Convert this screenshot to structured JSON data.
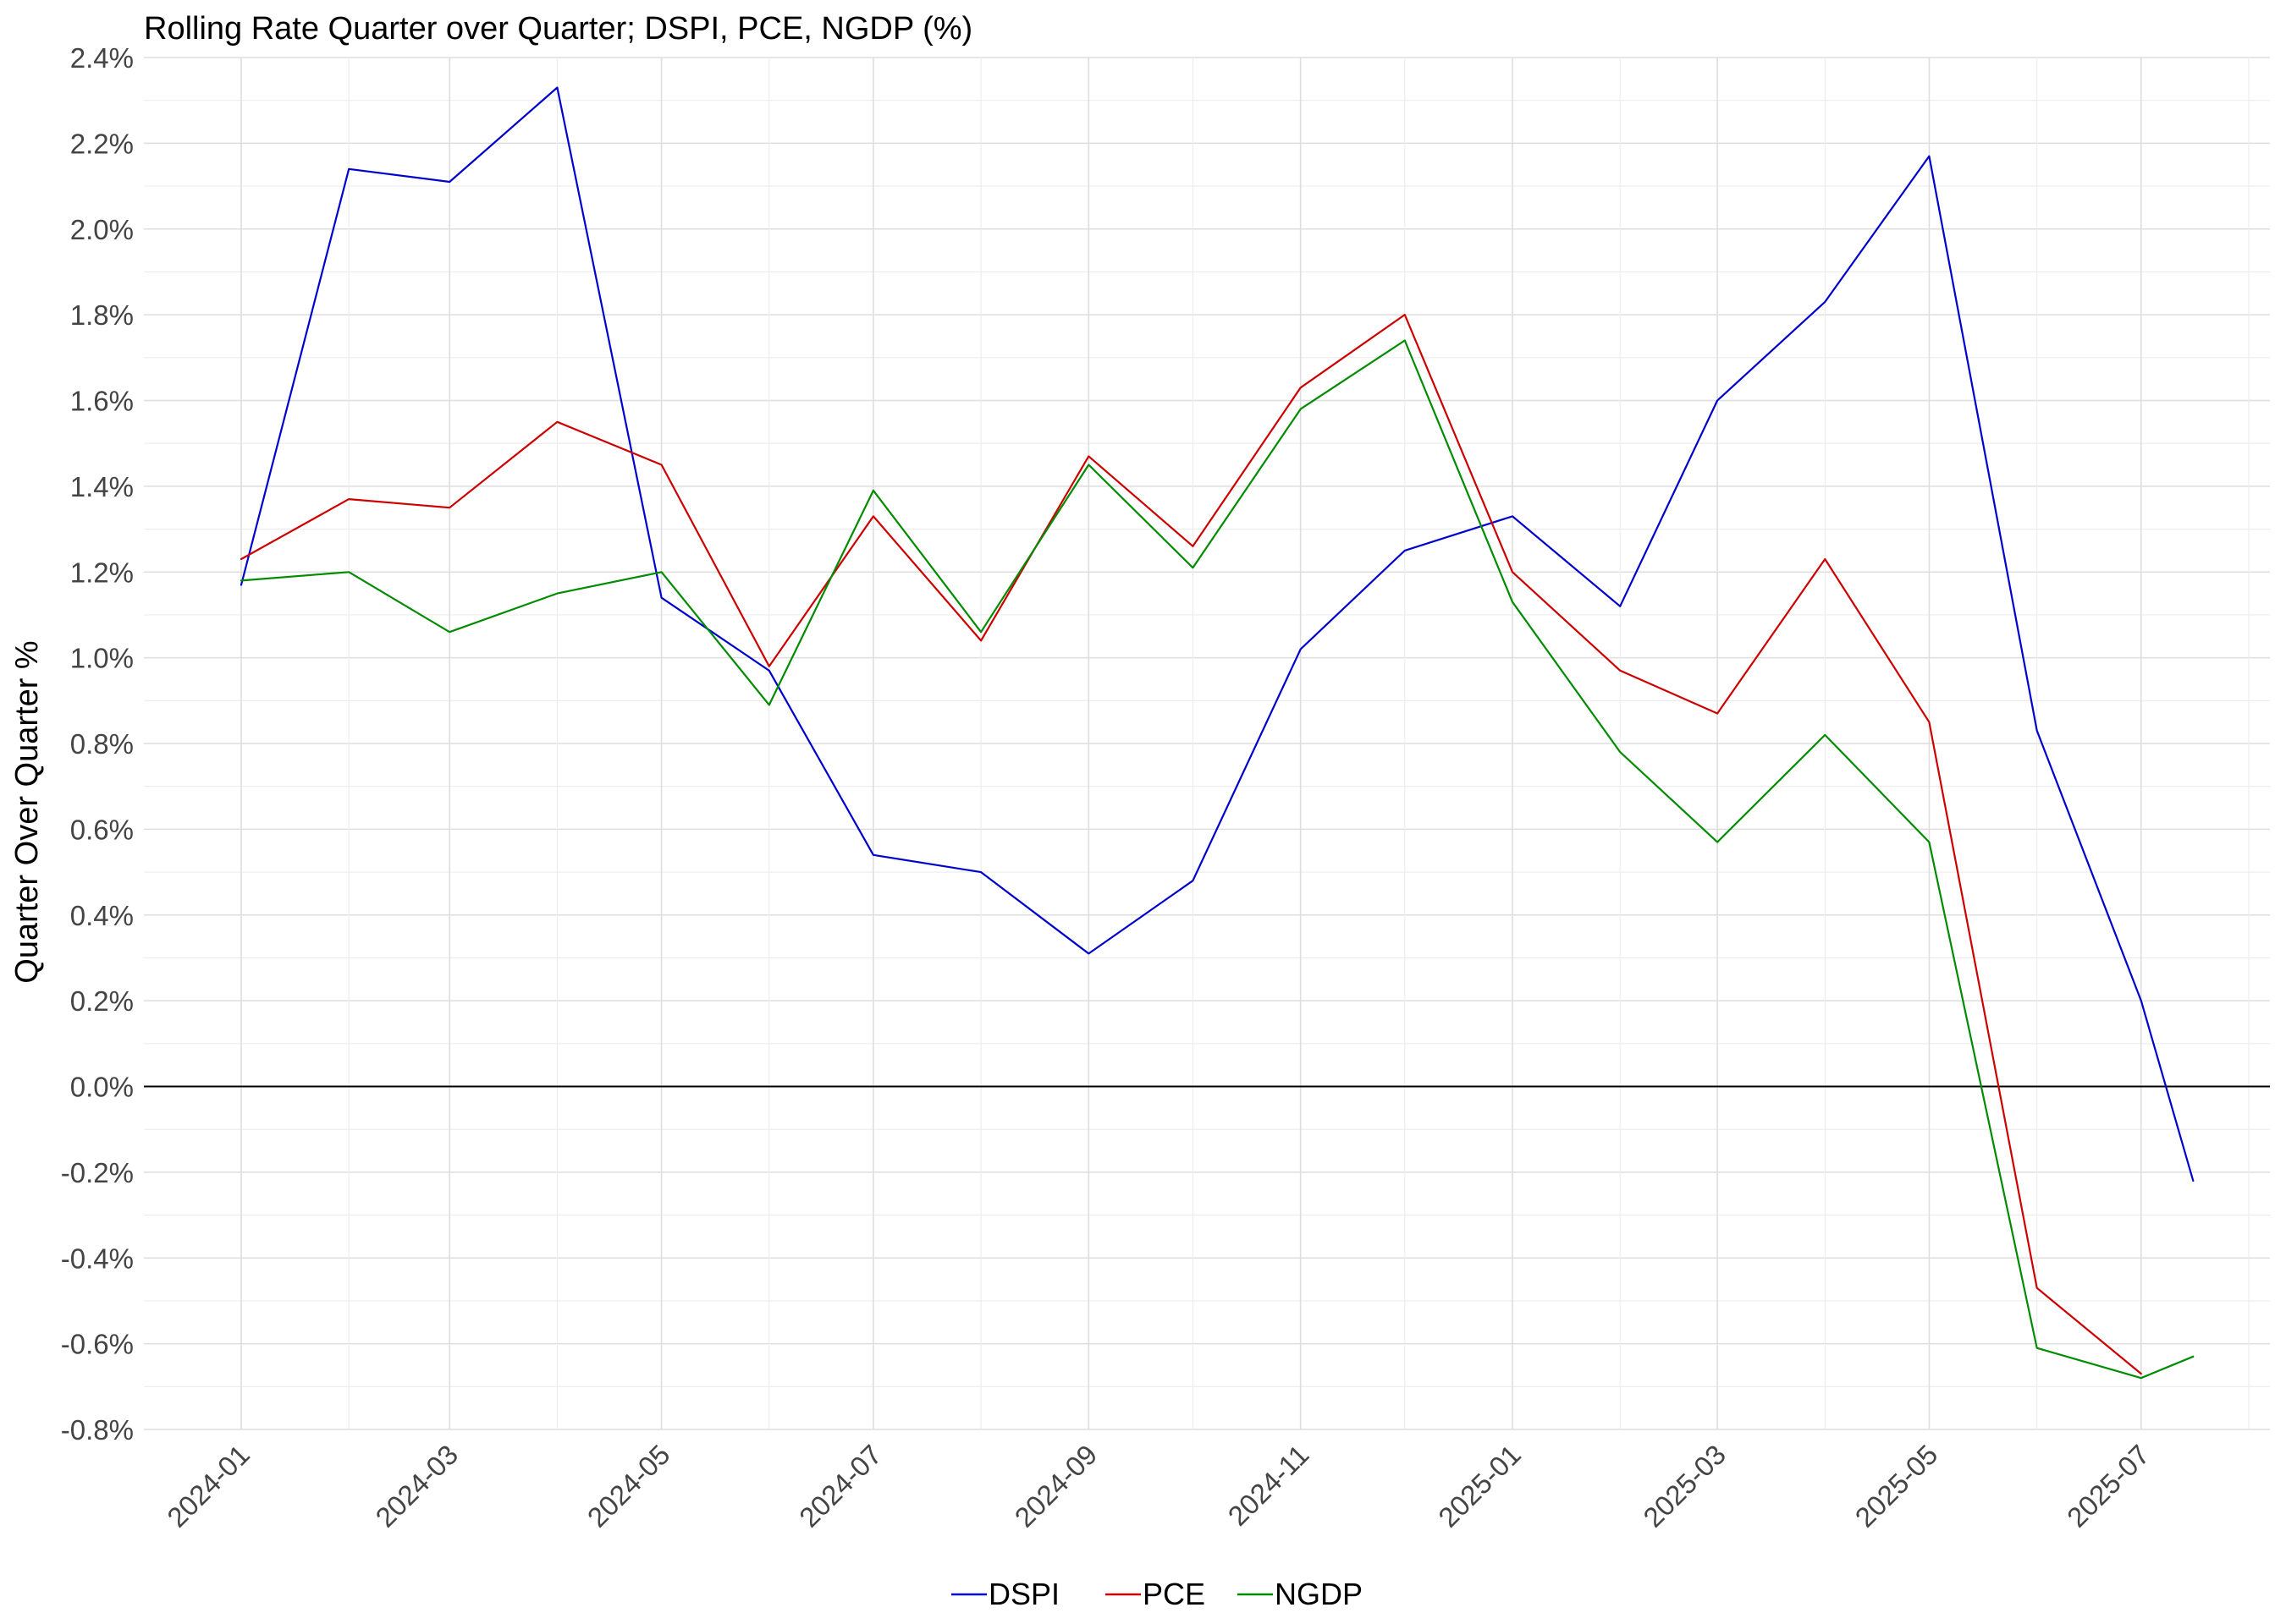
{
  "chart_data": {
    "type": "line",
    "title": "Rolling Rate  Quarter over Quarter; DSPI, PCE, NGDP (%)",
    "xlabel": "",
    "ylabel": "Quarter  Over Quarter %",
    "ylim": [
      -0.8,
      2.4
    ],
    "xlim": [
      "2024-01-01",
      "2025-08-01"
    ],
    "y_ticks": [
      "-0.8%",
      "-0.6%",
      "-0.4%",
      "-0.2%",
      "0.0%",
      "0.2%",
      "0.4%",
      "0.6%",
      "0.8%",
      "1.0%",
      "1.2%",
      "1.4%",
      "1.6%",
      "1.8%",
      "2.0%",
      "2.2%",
      "2.4%"
    ],
    "x_ticks": [
      "2024-01",
      "2024-03",
      "2024-05",
      "2024-07",
      "2024-09",
      "2024-11",
      "2025-01",
      "2025-03",
      "2025-05",
      "2025-07"
    ],
    "grid": true,
    "zero_line": true,
    "legend_position": "bottom",
    "x": [
      "2024-01-01",
      "2024-02-01",
      "2024-03-01",
      "2024-04-01",
      "2024-05-01",
      "2024-06-01",
      "2024-07-01",
      "2024-08-01",
      "2024-09-01",
      "2024-10-01",
      "2024-11-01",
      "2024-12-01",
      "2025-01-01",
      "2025-02-01",
      "2025-03-01",
      "2025-04-01",
      "2025-05-01",
      "2025-06-01",
      "2025-07-01",
      "2025-07-16"
    ],
    "series": [
      {
        "name": "DSPI",
        "color": "#0000cd",
        "values": [
          1.17,
          2.14,
          2.11,
          2.33,
          1.14,
          0.97,
          0.54,
          0.5,
          0.31,
          0.48,
          1.02,
          1.25,
          1.33,
          1.12,
          1.6,
          1.83,
          2.17,
          0.83,
          0.2,
          -0.22
        ]
      },
      {
        "name": "PCE",
        "color": "#cd0000",
        "values": [
          1.23,
          1.37,
          1.35,
          1.55,
          1.45,
          0.98,
          1.33,
          1.04,
          1.47,
          1.26,
          1.63,
          1.8,
          1.2,
          0.97,
          0.87,
          1.23,
          0.85,
          -0.47,
          -0.67,
          null
        ]
      },
      {
        "name": "NGDP",
        "color": "#008b00",
        "values": [
          1.18,
          1.2,
          1.06,
          1.15,
          1.2,
          0.89,
          1.39,
          1.06,
          1.45,
          1.21,
          1.58,
          1.74,
          1.13,
          0.78,
          0.57,
          0.82,
          0.57,
          -0.61,
          -0.68,
          -0.63
        ]
      }
    ]
  }
}
